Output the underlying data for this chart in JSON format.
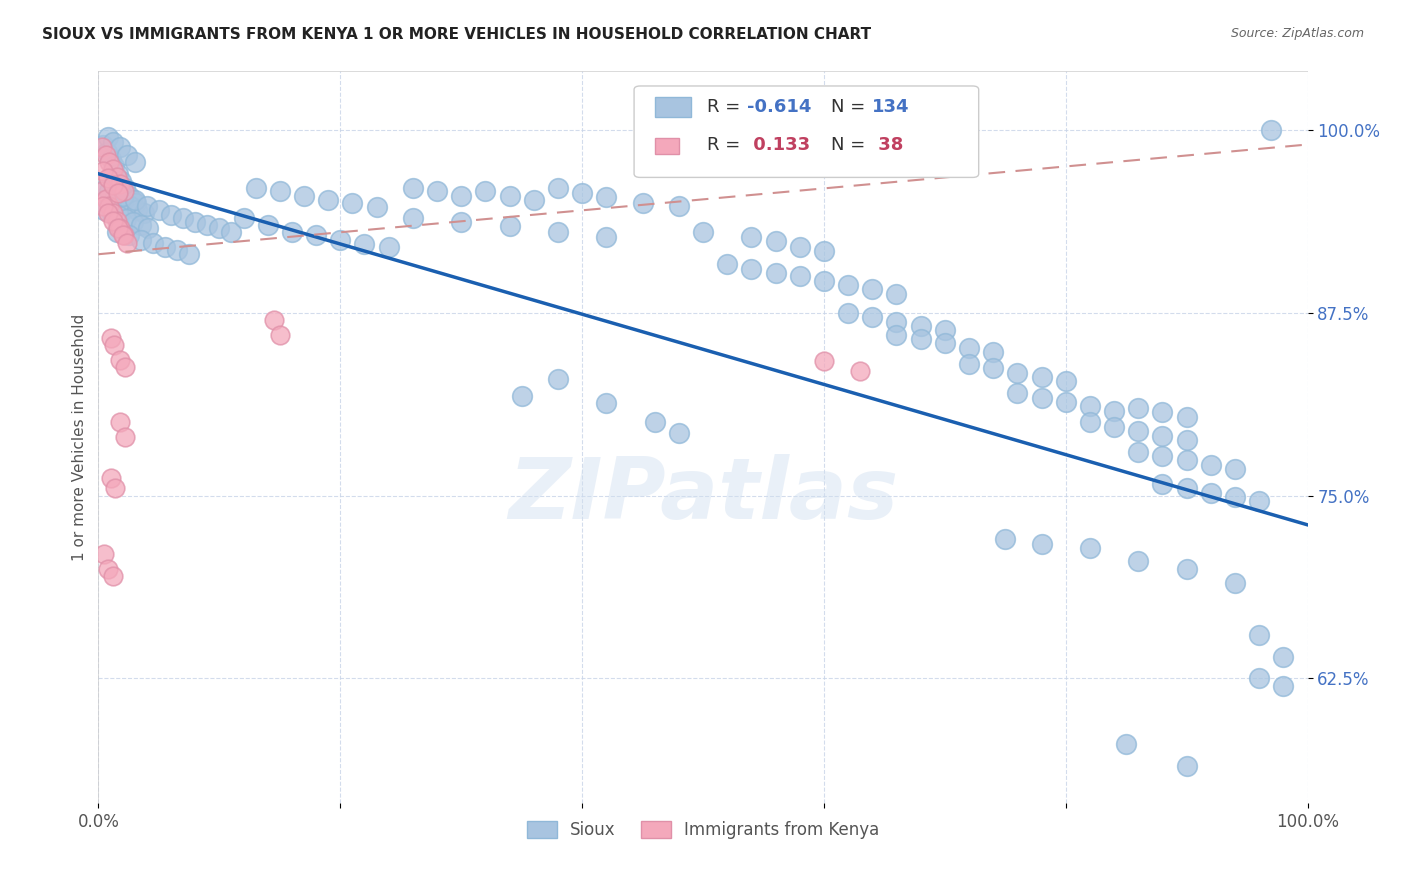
{
  "title": "SIOUX VS IMMIGRANTS FROM KENYA 1 OR MORE VEHICLES IN HOUSEHOLD CORRELATION CHART",
  "source": "Source: ZipAtlas.com",
  "ylabel": "1 or more Vehicles in Household",
  "ytick_labels": [
    "62.5%",
    "75.0%",
    "87.5%",
    "100.0%"
  ],
  "ytick_values": [
    0.625,
    0.75,
    0.875,
    1.0
  ],
  "xlim": [
    0.0,
    1.0
  ],
  "ylim": [
    0.54,
    1.04
  ],
  "sioux_label": "Sioux",
  "kenya_label": "Immigrants from Kenya",
  "blue_color": "#a8c4e0",
  "pink_color": "#f4a8bb",
  "blue_line_color": "#1a5fb0",
  "pink_line_color": "#d09090",
  "watermark": "ZIPatlas",
  "blue_points": [
    [
      0.004,
      0.99
    ],
    [
      0.007,
      0.985
    ],
    [
      0.01,
      0.98
    ],
    [
      0.013,
      0.975
    ],
    [
      0.016,
      0.97
    ],
    [
      0.019,
      0.965
    ],
    [
      0.022,
      0.96
    ],
    [
      0.025,
      0.955
    ],
    [
      0.028,
      0.952
    ],
    [
      0.031,
      0.95
    ],
    [
      0.008,
      0.995
    ],
    [
      0.012,
      0.992
    ],
    [
      0.018,
      0.988
    ],
    [
      0.024,
      0.983
    ],
    [
      0.03,
      0.978
    ],
    [
      0.006,
      0.96
    ],
    [
      0.009,
      0.958
    ],
    [
      0.014,
      0.955
    ],
    [
      0.02,
      0.952
    ],
    [
      0.026,
      0.948
    ],
    [
      0.032,
      0.945
    ],
    [
      0.038,
      0.943
    ],
    [
      0.005,
      0.945
    ],
    [
      0.011,
      0.943
    ],
    [
      0.017,
      0.941
    ],
    [
      0.023,
      0.939
    ],
    [
      0.029,
      0.937
    ],
    [
      0.035,
      0.935
    ],
    [
      0.041,
      0.933
    ],
    [
      0.015,
      0.93
    ],
    [
      0.025,
      0.928
    ],
    [
      0.035,
      0.925
    ],
    [
      0.045,
      0.923
    ],
    [
      0.055,
      0.92
    ],
    [
      0.065,
      0.918
    ],
    [
      0.075,
      0.915
    ],
    [
      0.02,
      0.955
    ],
    [
      0.03,
      0.952
    ],
    [
      0.04,
      0.948
    ],
    [
      0.05,
      0.945
    ],
    [
      0.06,
      0.942
    ],
    [
      0.07,
      0.94
    ],
    [
      0.08,
      0.937
    ],
    [
      0.09,
      0.935
    ],
    [
      0.1,
      0.933
    ],
    [
      0.11,
      0.93
    ],
    [
      0.12,
      0.94
    ],
    [
      0.14,
      0.935
    ],
    [
      0.16,
      0.93
    ],
    [
      0.18,
      0.928
    ],
    [
      0.2,
      0.925
    ],
    [
      0.22,
      0.922
    ],
    [
      0.24,
      0.92
    ],
    [
      0.13,
      0.96
    ],
    [
      0.15,
      0.958
    ],
    [
      0.17,
      0.955
    ],
    [
      0.19,
      0.952
    ],
    [
      0.21,
      0.95
    ],
    [
      0.23,
      0.947
    ],
    [
      0.26,
      0.96
    ],
    [
      0.28,
      0.958
    ],
    [
      0.3,
      0.955
    ],
    [
      0.32,
      0.958
    ],
    [
      0.34,
      0.955
    ],
    [
      0.36,
      0.952
    ],
    [
      0.38,
      0.96
    ],
    [
      0.4,
      0.957
    ],
    [
      0.42,
      0.954
    ],
    [
      0.45,
      0.95
    ],
    [
      0.48,
      0.948
    ],
    [
      0.26,
      0.94
    ],
    [
      0.3,
      0.937
    ],
    [
      0.34,
      0.934
    ],
    [
      0.38,
      0.93
    ],
    [
      0.42,
      0.927
    ],
    [
      0.5,
      0.93
    ],
    [
      0.54,
      0.927
    ],
    [
      0.56,
      0.924
    ],
    [
      0.58,
      0.92
    ],
    [
      0.6,
      0.917
    ],
    [
      0.52,
      0.908
    ],
    [
      0.54,
      0.905
    ],
    [
      0.56,
      0.902
    ],
    [
      0.58,
      0.9
    ],
    [
      0.6,
      0.897
    ],
    [
      0.62,
      0.894
    ],
    [
      0.64,
      0.891
    ],
    [
      0.66,
      0.888
    ],
    [
      0.62,
      0.875
    ],
    [
      0.64,
      0.872
    ],
    [
      0.66,
      0.869
    ],
    [
      0.68,
      0.866
    ],
    [
      0.7,
      0.863
    ],
    [
      0.66,
      0.86
    ],
    [
      0.68,
      0.857
    ],
    [
      0.7,
      0.854
    ],
    [
      0.72,
      0.851
    ],
    [
      0.74,
      0.848
    ],
    [
      0.72,
      0.84
    ],
    [
      0.74,
      0.837
    ],
    [
      0.76,
      0.834
    ],
    [
      0.78,
      0.831
    ],
    [
      0.8,
      0.828
    ],
    [
      0.76,
      0.82
    ],
    [
      0.78,
      0.817
    ],
    [
      0.8,
      0.814
    ],
    [
      0.82,
      0.811
    ],
    [
      0.84,
      0.808
    ],
    [
      0.82,
      0.8
    ],
    [
      0.84,
      0.797
    ],
    [
      0.86,
      0.794
    ],
    [
      0.88,
      0.791
    ],
    [
      0.9,
      0.788
    ],
    [
      0.86,
      0.81
    ],
    [
      0.88,
      0.807
    ],
    [
      0.9,
      0.804
    ],
    [
      0.86,
      0.78
    ],
    [
      0.88,
      0.777
    ],
    [
      0.9,
      0.774
    ],
    [
      0.92,
      0.771
    ],
    [
      0.94,
      0.768
    ],
    [
      0.88,
      0.758
    ],
    [
      0.9,
      0.755
    ],
    [
      0.92,
      0.752
    ],
    [
      0.94,
      0.749
    ],
    [
      0.96,
      0.746
    ],
    [
      0.75,
      0.72
    ],
    [
      0.78,
      0.717
    ],
    [
      0.82,
      0.714
    ],
    [
      0.86,
      0.705
    ],
    [
      0.9,
      0.7
    ],
    [
      0.94,
      0.69
    ],
    [
      0.96,
      0.655
    ],
    [
      0.98,
      0.64
    ],
    [
      0.96,
      0.625
    ],
    [
      0.98,
      0.62
    ],
    [
      0.97,
      1.0
    ],
    [
      0.85,
      0.58
    ],
    [
      0.9,
      0.565
    ],
    [
      0.35,
      0.818
    ],
    [
      0.42,
      0.813
    ],
    [
      0.46,
      0.8
    ],
    [
      0.48,
      0.793
    ],
    [
      0.38,
      0.83
    ]
  ],
  "kenya_points": [
    [
      0.003,
      0.988
    ],
    [
      0.006,
      0.983
    ],
    [
      0.009,
      0.978
    ],
    [
      0.012,
      0.973
    ],
    [
      0.015,
      0.968
    ],
    [
      0.018,
      0.963
    ],
    [
      0.021,
      0.958
    ],
    [
      0.003,
      0.958
    ],
    [
      0.006,
      0.953
    ],
    [
      0.009,
      0.948
    ],
    [
      0.012,
      0.943
    ],
    [
      0.015,
      0.938
    ],
    [
      0.018,
      0.933
    ],
    [
      0.021,
      0.928
    ],
    [
      0.004,
      0.972
    ],
    [
      0.008,
      0.967
    ],
    [
      0.012,
      0.962
    ],
    [
      0.016,
      0.957
    ],
    [
      0.004,
      0.948
    ],
    [
      0.008,
      0.943
    ],
    [
      0.012,
      0.938
    ],
    [
      0.016,
      0.933
    ],
    [
      0.02,
      0.928
    ],
    [
      0.024,
      0.923
    ],
    [
      0.01,
      0.858
    ],
    [
      0.013,
      0.853
    ],
    [
      0.018,
      0.843
    ],
    [
      0.022,
      0.838
    ],
    [
      0.145,
      0.87
    ],
    [
      0.15,
      0.86
    ],
    [
      0.6,
      0.842
    ],
    [
      0.63,
      0.835
    ],
    [
      0.018,
      0.8
    ],
    [
      0.022,
      0.79
    ],
    [
      0.01,
      0.762
    ],
    [
      0.014,
      0.755
    ],
    [
      0.005,
      0.71
    ],
    [
      0.008,
      0.7
    ],
    [
      0.012,
      0.695
    ]
  ],
  "blue_trend": [
    0.0,
    1.0,
    0.97,
    0.73
  ],
  "pink_trend": [
    0.0,
    1.0,
    0.915,
    0.99
  ]
}
